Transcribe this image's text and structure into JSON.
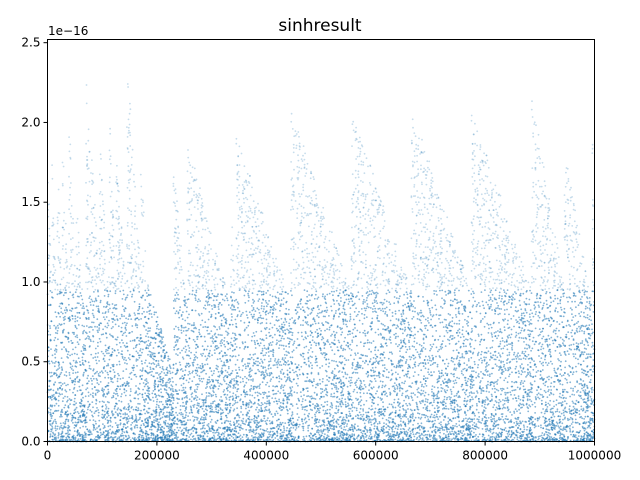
{
  "chart_data": {
    "type": "scatter",
    "title": "sinhresult",
    "xlabel": "",
    "ylabel": "",
    "xlim": [
      0,
      1000000
    ],
    "ylim": [
      0,
      2.52e-16
    ],
    "y_offset_text": "1e−16",
    "x_ticks": [
      {
        "value": 0,
        "label": "0"
      },
      {
        "value": 200000,
        "label": "200000"
      },
      {
        "value": 400000,
        "label": "400000"
      },
      {
        "value": 600000,
        "label": "600000"
      },
      {
        "value": 800000,
        "label": "800000"
      },
      {
        "value": 1000000,
        "label": "1000000"
      }
    ],
    "y_ticks": [
      {
        "value": 0.0,
        "label": "0.0"
      },
      {
        "value": 5e-17,
        "label": "0.5"
      },
      {
        "value": 1e-16,
        "label": "1.0"
      },
      {
        "value": 1.5e-16,
        "label": "1.5"
      },
      {
        "value": 2e-16,
        "label": "2.0"
      },
      {
        "value": 2.5e-16,
        "label": "2.5"
      }
    ],
    "grid": false,
    "legend": "none",
    "point_color": "#1f77b4",
    "segments": [
      {
        "start": 0,
        "end": 8000,
        "peak": 1.9e-16
      },
      {
        "start": 8000,
        "end": 17000,
        "peak": 1.8e-16
      },
      {
        "start": 17000,
        "end": 27000,
        "peak": 2e-16
      },
      {
        "start": 27000,
        "end": 39000,
        "peak": 2.05e-16
      },
      {
        "start": 39000,
        "end": 52000,
        "peak": 2.2e-16
      },
      {
        "start": 52000,
        "end": 70000,
        "peak": 1.55e-16
      },
      {
        "start": 70000,
        "end": 95000,
        "peak": 2.35e-16
      },
      {
        "start": 95000,
        "end": 112000,
        "peak": 2e-16
      },
      {
        "start": 112000,
        "end": 125000,
        "peak": 2.2e-16
      },
      {
        "start": 125000,
        "end": 145000,
        "peak": 1.9e-16
      },
      {
        "start": 145000,
        "end": 170000,
        "peak": 2.45e-16
      },
      {
        "start": 170000,
        "end": 182000,
        "peak": 2e-16
      },
      {
        "start": 182000,
        "end": 230000,
        "peak": 1e-16
      },
      {
        "start": 230000,
        "end": 255000,
        "peak": 1.8e-16
      },
      {
        "start": 255000,
        "end": 335000,
        "peak": 1.9e-16
      },
      {
        "start": 335000,
        "end": 345000,
        "peak": 1.6e-16
      },
      {
        "start": 345000,
        "end": 445000,
        "peak": 1.95e-16
      },
      {
        "start": 445000,
        "end": 555000,
        "peak": 2.1e-16
      },
      {
        "start": 555000,
        "end": 665000,
        "peak": 2.1e-16
      },
      {
        "start": 665000,
        "end": 775000,
        "peak": 2.1e-16
      },
      {
        "start": 775000,
        "end": 885000,
        "peak": 2.1e-16
      },
      {
        "start": 885000,
        "end": 945000,
        "peak": 2.18e-16
      },
      {
        "start": 945000,
        "end": 996000,
        "peak": 1.85e-16
      },
      {
        "start": 996000,
        "end": 1000000,
        "peak": 2.05e-16
      }
    ]
  }
}
